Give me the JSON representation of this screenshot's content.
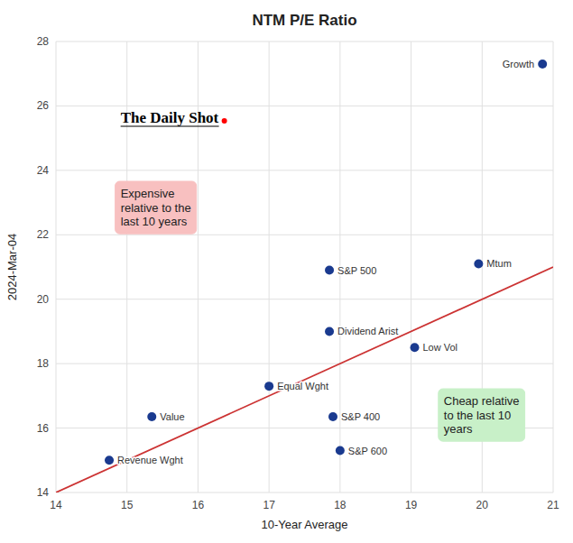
{
  "chart_data": {
    "type": "scatter",
    "title": "NTM P/E Ratio",
    "x_label": "10-Year Average",
    "y_label": "2024-Mar-04",
    "xlim": [
      14,
      21
    ],
    "ylim": [
      14,
      28
    ],
    "xticks": [
      14,
      15,
      16,
      17,
      18,
      19,
      20,
      21
    ],
    "yticks": [
      14,
      16,
      18,
      20,
      22,
      24,
      26,
      28
    ],
    "grid": true,
    "series": [
      {
        "x": [
          14.75,
          15.35,
          17.0,
          17.85,
          17.85,
          17.9,
          18.0,
          19.05,
          19.95,
          20.85
        ],
        "values": [
          15.0,
          16.35,
          17.3,
          19.0,
          20.9,
          16.35,
          15.3,
          18.5,
          21.1,
          27.3
        ],
        "labels": [
          "Revenue Wght",
          "Value",
          "Equal Wght",
          "Dividend Arist",
          "S&P 500",
          "S&P 400",
          "S&P 600",
          "Low Vol",
          "Mtum",
          "Growth"
        ],
        "color": "#1a3a8f",
        "marker": "circle"
      },
      {
        "type": "line",
        "x": [
          14,
          21
        ],
        "values": [
          14.0,
          21.0
        ],
        "color": "#cc3333"
      }
    ],
    "annotations": [
      {
        "text": "The Daily Shot"
      },
      {
        "text": "Expensive\nrelative to the\nlast 10 years",
        "color": "#f8c0c0"
      },
      {
        "text": "Cheap relative\nto the last 10\nyears",
        "color": "#c8f0c8"
      }
    ]
  }
}
